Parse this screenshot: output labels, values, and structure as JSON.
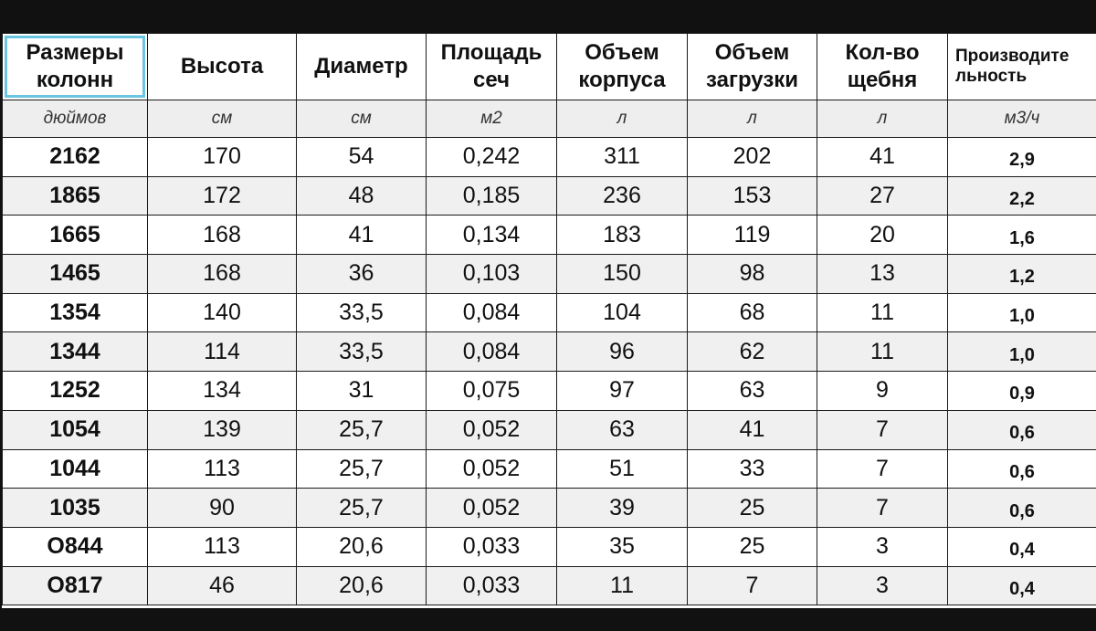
{
  "headers": [
    "Размеры колонн",
    "Высота",
    "Диаметр",
    "Площадь сеч",
    "Объем корпуса",
    "Объем загрузки",
    "Кол-во щебня",
    "Производительность"
  ],
  "header_lines": [
    [
      "Размеры",
      "колонн"
    ],
    [
      "Высота"
    ],
    [
      "Диаметр"
    ],
    [
      "Площадь",
      "сеч"
    ],
    [
      "Объем",
      "корпуса"
    ],
    [
      "Объем",
      "загрузки"
    ],
    [
      "Кол-во",
      "щебня"
    ],
    [
      "Производите",
      "льность"
    ]
  ],
  "units": [
    "дюймов",
    "см",
    "см",
    "м2",
    "л",
    "л",
    "л",
    "м3/ч"
  ],
  "rows": [
    [
      "2162",
      "170",
      "54",
      "0,242",
      "311",
      "202",
      "41",
      "2,9"
    ],
    [
      "1865",
      "172",
      "48",
      "0,185",
      "236",
      "153",
      "27",
      "2,2"
    ],
    [
      "1665",
      "168",
      "41",
      "0,134",
      "183",
      "119",
      "20",
      "1,6"
    ],
    [
      "1465",
      "168",
      "36",
      "0,103",
      "150",
      "98",
      "13",
      "1,2"
    ],
    [
      "1354",
      "140",
      "33,5",
      "0,084",
      "104",
      "68",
      "11",
      "1,0"
    ],
    [
      "1344",
      "114",
      "33,5",
      "0,084",
      "96",
      "62",
      "11",
      "1,0"
    ],
    [
      "1252",
      "134",
      "31",
      "0,075",
      "97",
      "63",
      "9",
      "0,9"
    ],
    [
      "1054",
      "139",
      "25,7",
      "0,052",
      "63",
      "41",
      "7",
      "0,6"
    ],
    [
      "1044",
      "113",
      "25,7",
      "0,052",
      "51",
      "33",
      "7",
      "0,6"
    ],
    [
      "1035",
      "90",
      "25,7",
      "0,052",
      "39",
      "25",
      "7",
      "0,6"
    ],
    [
      "O844",
      "113",
      "20,6",
      "0,033",
      "35",
      "25",
      "3",
      "0,4"
    ],
    [
      "O817",
      "46",
      "20,6",
      "0,033",
      "11",
      "7",
      "3",
      "0,4"
    ]
  ]
}
